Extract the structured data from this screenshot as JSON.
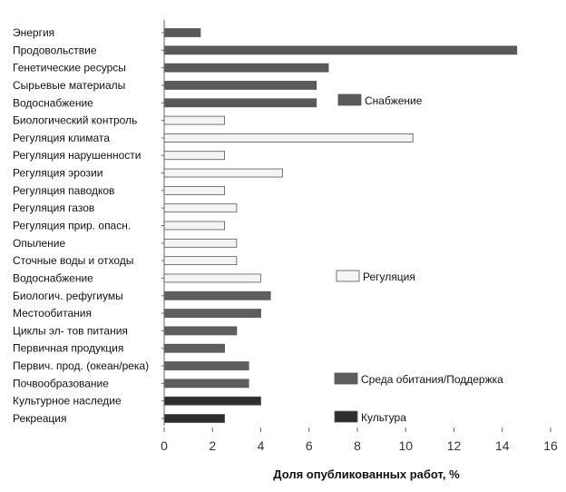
{
  "chart_data": {
    "type": "bar",
    "orientation": "horizontal",
    "xlabel": "Доля опубликованных работ, %",
    "xlim": [
      0,
      16
    ],
    "xticks": [
      0,
      2,
      4,
      6,
      8,
      10,
      12,
      14,
      16
    ],
    "grid": false,
    "categories": [
      {
        "label": "Энергия",
        "value": 1.5,
        "group": "supply"
      },
      {
        "label": "Продовольствие",
        "value": 14.6,
        "group": "supply"
      },
      {
        "label": "Генетические ресурсы",
        "value": 6.8,
        "group": "supply"
      },
      {
        "label": "Сырьевые материалы",
        "value": 6.3,
        "group": "supply"
      },
      {
        "label": "Водоснабжение",
        "value": 6.3,
        "group": "supply"
      },
      {
        "label": "Биологический контроль",
        "value": 2.5,
        "group": "regulation"
      },
      {
        "label": "Регуляция климата",
        "value": 10.3,
        "group": "regulation"
      },
      {
        "label": "Регуляция нарушенности",
        "value": 2.5,
        "group": "regulation"
      },
      {
        "label": "Регуляция эрозии",
        "value": 4.9,
        "group": "regulation"
      },
      {
        "label": "Регуляция паводков",
        "value": 2.5,
        "group": "regulation"
      },
      {
        "label": "Регуляция газов",
        "value": 3.0,
        "group": "regulation"
      },
      {
        "label": "Регуляция прир. опасн.",
        "value": 2.5,
        "group": "regulation"
      },
      {
        "label": "Опыление",
        "value": 3.0,
        "group": "regulation"
      },
      {
        "label": "Сточные воды и отходы",
        "value": 3.0,
        "group": "regulation"
      },
      {
        "label": "Водоснабжение",
        "value": 4.0,
        "group": "regulation"
      },
      {
        "label": "Биологич. рефугиумы",
        "value": 4.4,
        "group": "habitat"
      },
      {
        "label": "Местообитания",
        "value": 4.0,
        "group": "habitat"
      },
      {
        "label": "Циклы эл- тов питания",
        "value": 3.0,
        "group": "habitat"
      },
      {
        "label": "Первичная продукция",
        "value": 2.5,
        "group": "habitat"
      },
      {
        "label": "Первич. прод. (океан/река)",
        "value": 3.5,
        "group": "habitat"
      },
      {
        "label": "Почвообразование",
        "value": 3.5,
        "group": "habitat"
      },
      {
        "label": "Культурное наследие",
        "value": 4.0,
        "group": "culture"
      },
      {
        "label": "Рекреация",
        "value": 2.5,
        "group": "culture"
      }
    ],
    "groups": [
      {
        "key": "supply",
        "name": "Снабжение",
        "color": "#5a5a5a"
      },
      {
        "key": "regulation",
        "name": "Регуляция",
        "color": "#f4f4f4"
      },
      {
        "key": "habitat",
        "name": "Среда обитания/Поддержка",
        "color": "#5e5e5e"
      },
      {
        "key": "culture",
        "name": "Культура",
        "color": "#2e2e2e"
      }
    ],
    "legend_placement": "right"
  }
}
